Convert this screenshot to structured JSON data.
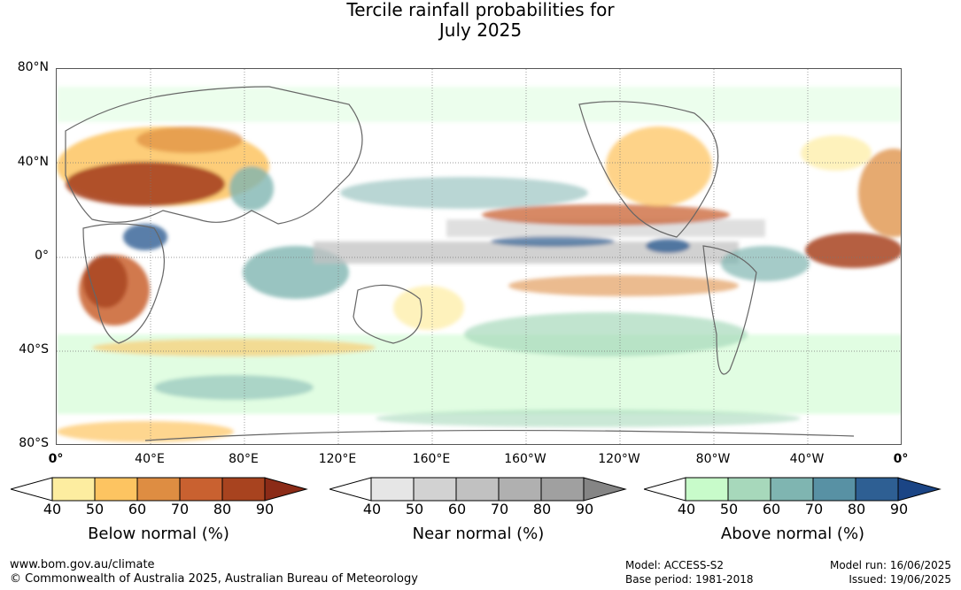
{
  "title_line1": "Tercile rainfall probabilities for",
  "title_line2": "July 2025",
  "lat_labels": [
    "80°N",
    "40°N",
    "0°",
    "40°S",
    "80°S"
  ],
  "lon_labels": [
    "0°",
    "40°E",
    "80°E",
    "120°E",
    "160°E",
    "160°W",
    "120°W",
    "80°W",
    "40°W",
    "0°"
  ],
  "legends": [
    {
      "title": "Below normal (%)",
      "ticks": [
        "40",
        "50",
        "60",
        "70",
        "80",
        "90"
      ],
      "colors": [
        "#ffffff",
        "#fdeda0",
        "#fdc461",
        "#de8d42",
        "#c96130",
        "#a8431f",
        "#8b2b17"
      ]
    },
    {
      "title": "Near normal (%)",
      "ticks": [
        "40",
        "50",
        "60",
        "70",
        "80",
        "90"
      ],
      "colors": [
        "#ffffff",
        "#e6e6e6",
        "#d2d2d2",
        "#c1c1c1",
        "#b0b0b0",
        "#a0a0a0",
        "#858585"
      ]
    },
    {
      "title": "Above normal (%)",
      "ticks": [
        "40",
        "50",
        "60",
        "70",
        "80",
        "90"
      ],
      "colors": [
        "#ffffff",
        "#c8fbca",
        "#a7d8bb",
        "#7fb5b1",
        "#5891a4",
        "#2e5f93",
        "#1b4585"
      ]
    }
  ],
  "footer": {
    "website": "www.bom.gov.au/climate",
    "copyright": "© Commonwealth of Australia 2025, Australian Bureau of Meteorology",
    "model": "Model: ACCESS-S2",
    "base_period": "Base period: 1981-2018",
    "model_run": "Model run: 16/06/2025",
    "issued": "Issued: 19/06/2025"
  }
}
